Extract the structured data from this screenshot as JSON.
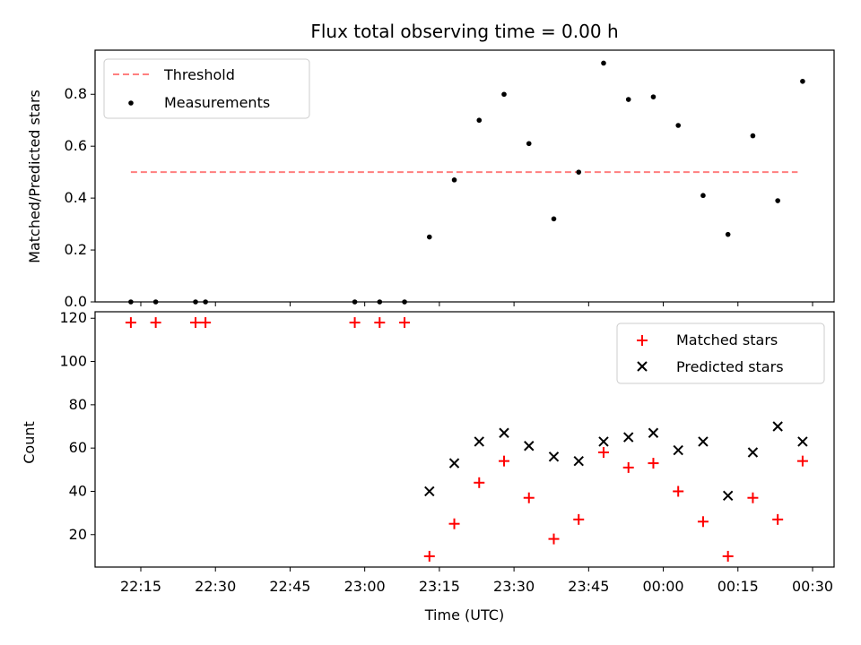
{
  "chart_data": [
    {
      "type": "scatter",
      "title": "Flux total observing time = 0.00 h",
      "xlabel": "",
      "ylabel": "Matched/Predicted stars",
      "ylim": [
        0,
        0.97
      ],
      "yticks": [
        "0.0",
        "0.2",
        "0.4",
        "0.6",
        "0.8"
      ],
      "threshold": {
        "name": "Threshold",
        "value": 0.5,
        "x_start": "22:13",
        "x_end": "00:27",
        "color": "#ff7f7f"
      },
      "series": [
        {
          "name": "Measurements",
          "color": "#000000",
          "x": [
            "22:13",
            "22:18",
            "22:26",
            "22:28",
            "22:58",
            "23:03",
            "23:08",
            "23:13",
            "23:18",
            "23:23",
            "23:28",
            "23:33",
            "23:38",
            "23:43",
            "23:48",
            "23:53",
            "23:58",
            "00:03",
            "00:08",
            "00:13",
            "00:18",
            "00:23",
            "00:28"
          ],
          "values": [
            0,
            0,
            0,
            0,
            0,
            0,
            0,
            0.25,
            0.47,
            0.7,
            0.8,
            0.61,
            0.32,
            0.5,
            0.92,
            0.78,
            0.79,
            0.68,
            0.41,
            0.26,
            0.64,
            0.39,
            0.85
          ]
        }
      ],
      "legend_position": "upper-left"
    },
    {
      "type": "scatter",
      "title": "",
      "xlabel": "Time (UTC)",
      "ylabel": "Count",
      "ylim": [
        5,
        123
      ],
      "yticks": [
        "20",
        "40",
        "60",
        "80",
        "100",
        "120"
      ],
      "xticks": [
        "22:15",
        "22:30",
        "22:45",
        "23:00",
        "23:15",
        "23:30",
        "23:45",
        "00:00",
        "00:15",
        "00:30"
      ],
      "series": [
        {
          "name": "Matched stars",
          "marker": "plus",
          "color": "#ff0000",
          "x": [
            "22:13",
            "22:18",
            "22:26",
            "22:28",
            "22:58",
            "23:03",
            "23:08",
            "23:13",
            "23:18",
            "23:23",
            "23:28",
            "23:33",
            "23:38",
            "23:43",
            "23:48",
            "23:53",
            "23:58",
            "00:03",
            "00:08",
            "00:13",
            "00:18",
            "00:23",
            "00:28"
          ],
          "values": [
            118,
            118,
            118,
            118,
            118,
            118,
            118,
            10,
            25,
            44,
            54,
            37,
            18,
            27,
            58,
            51,
            53,
            40,
            26,
            10,
            37,
            27,
            54
          ]
        },
        {
          "name": "Predicted stars",
          "marker": "x",
          "color": "#000000",
          "x": [
            "23:13",
            "23:18",
            "23:23",
            "23:28",
            "23:33",
            "23:38",
            "23:43",
            "23:48",
            "23:53",
            "23:58",
            "00:03",
            "00:08",
            "00:13",
            "00:18",
            "00:23",
            "00:28"
          ],
          "values": [
            40,
            53,
            63,
            67,
            61,
            56,
            54,
            63,
            65,
            67,
            59,
            63,
            38,
            58,
            70,
            63
          ]
        }
      ],
      "legend_position": "upper-right"
    }
  ]
}
